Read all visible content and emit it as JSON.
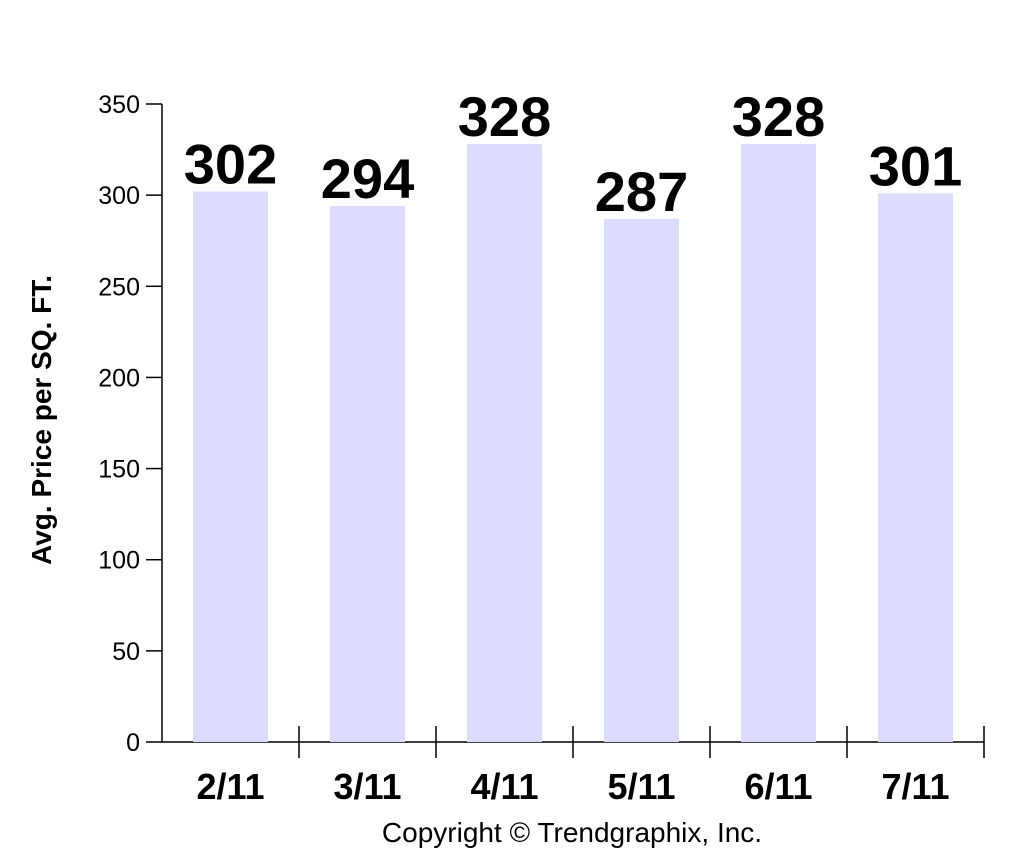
{
  "chart_data": {
    "type": "bar",
    "categories": [
      "2/11",
      "3/11",
      "4/11",
      "5/11",
      "6/11",
      "7/11"
    ],
    "values": [
      302,
      294,
      328,
      287,
      328,
      301
    ],
    "ylabel": "Avg. Price per SQ. FT.",
    "xlabel": "",
    "ylim": [
      0,
      350
    ],
    "yticks": [
      0,
      50,
      100,
      150,
      200,
      250,
      300,
      350
    ],
    "grid": false,
    "data_labels": true,
    "bar_color": "#dcdcfc"
  },
  "footer": {
    "copyright": "Copyright © Trendgraphix, Inc."
  }
}
